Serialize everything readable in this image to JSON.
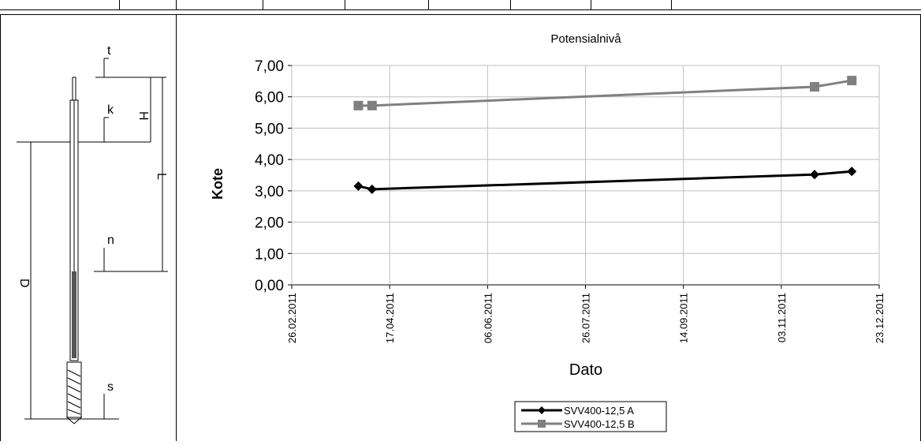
{
  "chart_data": {
    "type": "line",
    "title": "Potensialnivå",
    "xlabel": "Dato",
    "ylabel": "Kote",
    "ylim": [
      0,
      7
    ],
    "x_range": [
      "26.02.2011",
      "23.12.2011"
    ],
    "y_ticks": [
      "0,00",
      "1,00",
      "2,00",
      "3,00",
      "4,00",
      "5,00",
      "6,00",
      "7,00"
    ],
    "x_ticks": [
      "26.02.2011",
      "17.04.2011",
      "06.06.2011",
      "26.07.2011",
      "14.09.2011",
      "03.11.2011",
      "23.12.2011"
    ],
    "grid": true,
    "legend_position": "bottom",
    "series": [
      {
        "name": "SVV400-12,5 A",
        "color": "#000000",
        "marker": "diamond",
        "x": [
          "2011-04-01",
          "2011-04-08",
          "2011-11-20",
          "2011-12-09"
        ],
        "values": [
          3.15,
          3.05,
          3.52,
          3.62
        ]
      },
      {
        "name": "SVV400-12,5 B",
        "color": "#808080",
        "marker": "square",
        "x": [
          "2011-04-01",
          "2011-04-08",
          "2011-11-20",
          "2011-12-09"
        ],
        "values": [
          5.72,
          5.72,
          6.32,
          6.52
        ]
      }
    ]
  },
  "diagram_labels": {
    "t": "t",
    "k": "k",
    "H": "H",
    "L": "L",
    "n": "n",
    "D": "D",
    "s": "s"
  }
}
